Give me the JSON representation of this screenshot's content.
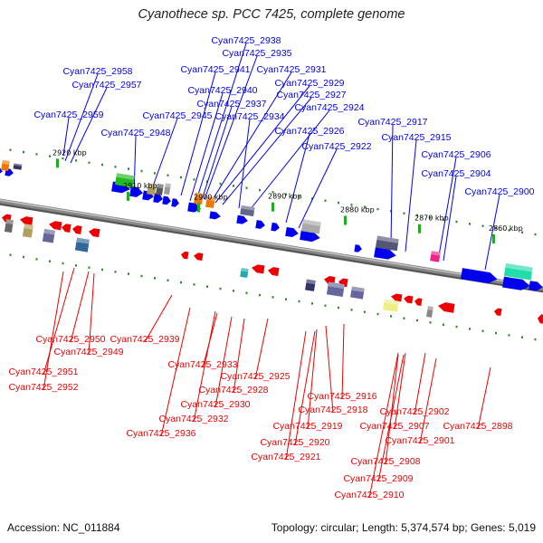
{
  "title": "Cyanothece sp. PCC 7425, complete genome",
  "footer": {
    "accession": "Accession: NC_011884",
    "topology": "Topology: circular; Length: 5,374,574 bp; Genes: 5,019"
  },
  "colors": {
    "forward": "#0000ee",
    "reverse": "#ee0000",
    "backbone": "#888888"
  },
  "ticks": [
    "2920 kbp",
    "2910 kbp",
    "2900 kbp",
    "2890 kbp",
    "2880 kbp",
    "2870 kbp",
    "2860 kbp"
  ],
  "forward_labels": [
    "Cyan7425_2958",
    "Cyan7425_2957",
    "Cyan7425_2959",
    "Cyan7425_2938",
    "Cyan7425_2935",
    "Cyan7425_2941",
    "Cyan7425_2931",
    "Cyan7425_2929",
    "Cyan7425_2940",
    "Cyan7425_2927",
    "Cyan7425_2937",
    "Cyan7425_2924",
    "Cyan7425_2945",
    "Cyan7425_2934",
    "Cyan7425_2917",
    "Cyan7425_2926",
    "Cyan7425_2948",
    "Cyan7425_2915",
    "Cyan7425_2922",
    "Cyan7425_2906",
    "Cyan7425_2904",
    "Cyan7425_2900"
  ],
  "reverse_labels": [
    "Cyan7425_2950",
    "Cyan7425_2939",
    "Cyan7425_2949",
    "Cyan7425_2933",
    "Cyan7425_2951",
    "Cyan7425_2925",
    "Cyan7425_2928",
    "Cyan7425_2952",
    "Cyan7425_2916",
    "Cyan7425_2930",
    "Cyan7425_2918",
    "Cyan7425_2902",
    "Cyan7425_2932",
    "Cyan7425_2919",
    "Cyan7425_2907",
    "Cyan7425_2898",
    "Cyan7425_2936",
    "Cyan7425_2920",
    "Cyan7425_2901",
    "Cyan7425_2921",
    "Cyan7425_2908",
    "Cyan7425_2909",
    "Cyan7425_2910"
  ]
}
